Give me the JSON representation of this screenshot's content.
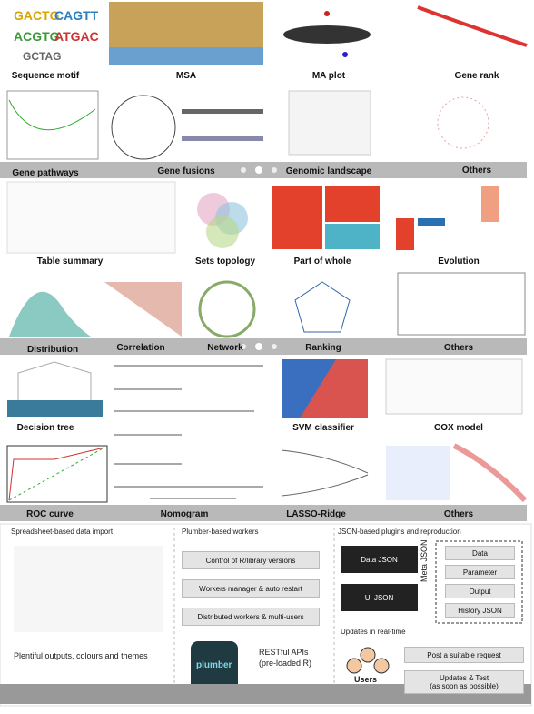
{
  "galleries": [
    {
      "rows": [
        [
          "Sequence motif",
          "MSA",
          "MA plot",
          "Gene rank"
        ],
        [
          "Gene pathways",
          "Gene fusions",
          "Genomic landscape",
          "Others"
        ]
      ]
    },
    {
      "rows": [
        [
          "Table summary",
          "Sets topology",
          "Part of whole",
          "Evolution"
        ],
        [
          "Distribution",
          "Correlation",
          "Network",
          "Ranking",
          "Others"
        ]
      ]
    },
    {
      "rows": [
        [
          "Decision tree",
          "SVM classifier",
          "COX model"
        ],
        [
          "ROC curve",
          "Nomogram",
          "LASSO-Ridge",
          "Others"
        ]
      ]
    }
  ],
  "features": {
    "data_import": {
      "title": "Spreadsheet-based data import",
      "outputs": "Plentiful outputs, colours and themes"
    },
    "workers": {
      "title": "Plumber-based workers",
      "items": [
        "Control of R/library versions",
        "Workers manager & auto restart",
        "Distributed workers & multi-users"
      ],
      "logo": "plumber",
      "api": "RESTful APIs",
      "api_note": "(pre-loaded R)"
    },
    "plugins": {
      "title": "JSON-based plugins and reproduction",
      "data_json": "Data JSON",
      "ui_json": "UI JSON",
      "meta_json": "Meta JSON",
      "items": [
        "Data",
        "Parameter",
        "Output",
        "History JSON"
      ]
    },
    "updates": {
      "title": "Updates in real-time",
      "steps": [
        "Post a suitable request",
        "Updates & Test"
      ],
      "step_note": "(as soon as possible)",
      "users": "Users"
    }
  }
}
